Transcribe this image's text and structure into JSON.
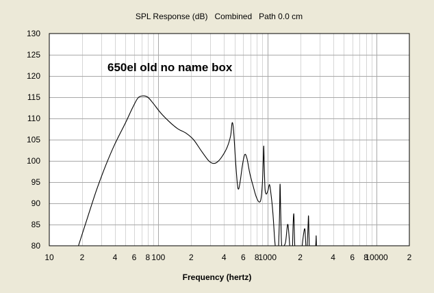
{
  "chart_data": {
    "type": "line",
    "title": "SPL Response (dB)   Combined   Path 0.0 cm",
    "xlabel": "Frequency (hertz)",
    "ylabel": "",
    "x_scale": "log",
    "xlim": [
      10,
      20000
    ],
    "ylim": [
      80,
      130
    ],
    "yticks": [
      80,
      85,
      90,
      95,
      100,
      105,
      110,
      115,
      120,
      125,
      130
    ],
    "xtick_labels": [
      {
        "value": 10,
        "label": "10"
      },
      {
        "value": 20,
        "label": "2"
      },
      {
        "value": 40,
        "label": "4"
      },
      {
        "value": 60,
        "label": "6"
      },
      {
        "value": 80,
        "label": "8"
      },
      {
        "value": 100,
        "label": "100"
      },
      {
        "value": 200,
        "label": "2"
      },
      {
        "value": 400,
        "label": "4"
      },
      {
        "value": 600,
        "label": "6"
      },
      {
        "value": 800,
        "label": "8"
      },
      {
        "value": 1000,
        "label": "1000"
      },
      {
        "value": 2000,
        "label": "2"
      },
      {
        "value": 4000,
        "label": "4"
      },
      {
        "value": 6000,
        "label": "6"
      },
      {
        "value": 8000,
        "label": "8"
      },
      {
        "value": 10000,
        "label": "10000"
      },
      {
        "value": 20000,
        "label": "2"
      }
    ],
    "grid": true,
    "annotation": "650el old no name box",
    "series": [
      {
        "color": "#000000",
        "points": [
          [
            18.5,
            80
          ],
          [
            22,
            86
          ],
          [
            27,
            93
          ],
          [
            33,
            99
          ],
          [
            40,
            104
          ],
          [
            50,
            109
          ],
          [
            58,
            112.5
          ],
          [
            65,
            114.8
          ],
          [
            72,
            115.3
          ],
          [
            80,
            115
          ],
          [
            90,
            113.5
          ],
          [
            105,
            111.3
          ],
          [
            125,
            109.3
          ],
          [
            150,
            107.6
          ],
          [
            180,
            106.5
          ],
          [
            210,
            105
          ],
          [
            250,
            102.2
          ],
          [
            290,
            100
          ],
          [
            320,
            99.4
          ],
          [
            350,
            99.8
          ],
          [
            390,
            101.3
          ],
          [
            430,
            103.4
          ],
          [
            460,
            106
          ],
          [
            475,
            109
          ],
          [
            490,
            107
          ],
          [
            510,
            100
          ],
          [
            530,
            94.5
          ],
          [
            545,
            93.4
          ],
          [
            565,
            95.5
          ],
          [
            590,
            99
          ],
          [
            620,
            101.5
          ],
          [
            650,
            100.5
          ],
          [
            690,
            97
          ],
          [
            740,
            94
          ],
          [
            790,
            91.5
          ],
          [
            840,
            90.3
          ],
          [
            875,
            91.2
          ],
          [
            900,
            95
          ],
          [
            915,
            100
          ],
          [
            925,
            103.5
          ],
          [
            935,
            99
          ],
          [
            950,
            93.5
          ],
          [
            975,
            92.2
          ],
          [
            1010,
            93
          ],
          [
            1045,
            94.4
          ],
          [
            1080,
            92
          ],
          [
            1120,
            88
          ],
          [
            1160,
            82
          ],
          [
            1180,
            80
          ]
        ],
        "resonance_tail": [
          [
            [
              1265,
              80
            ],
            [
              1290,
              87
            ],
            [
              1305,
              94.5
            ],
            [
              1320,
              89
            ],
            [
              1340,
              82
            ],
            [
              1350,
              80
            ]
          ],
          [
            [
              1420,
              80
            ],
            [
              1470,
              81
            ],
            [
              1530,
              85
            ],
            [
              1570,
              83
            ],
            [
              1600,
              80
            ]
          ],
          [
            [
              1700,
              80
            ],
            [
              1720,
              85
            ],
            [
              1745,
              87.5
            ],
            [
              1765,
              83
            ],
            [
              1780,
              80
            ]
          ],
          [
            [
              2080,
              80
            ],
            [
              2150,
              83
            ],
            [
              2200,
              84
            ],
            [
              2230,
              82
            ],
            [
              2250,
              80
            ]
          ],
          [
            [
              2320,
              80
            ],
            [
              2360,
              85
            ],
            [
              2380,
              87
            ],
            [
              2400,
              83
            ],
            [
              2420,
              80
            ]
          ],
          [
            [
              2770,
              80
            ],
            [
              2790,
              81.5
            ],
            [
              2800,
              82.3
            ],
            [
              2815,
              80
            ]
          ]
        ]
      }
    ]
  }
}
